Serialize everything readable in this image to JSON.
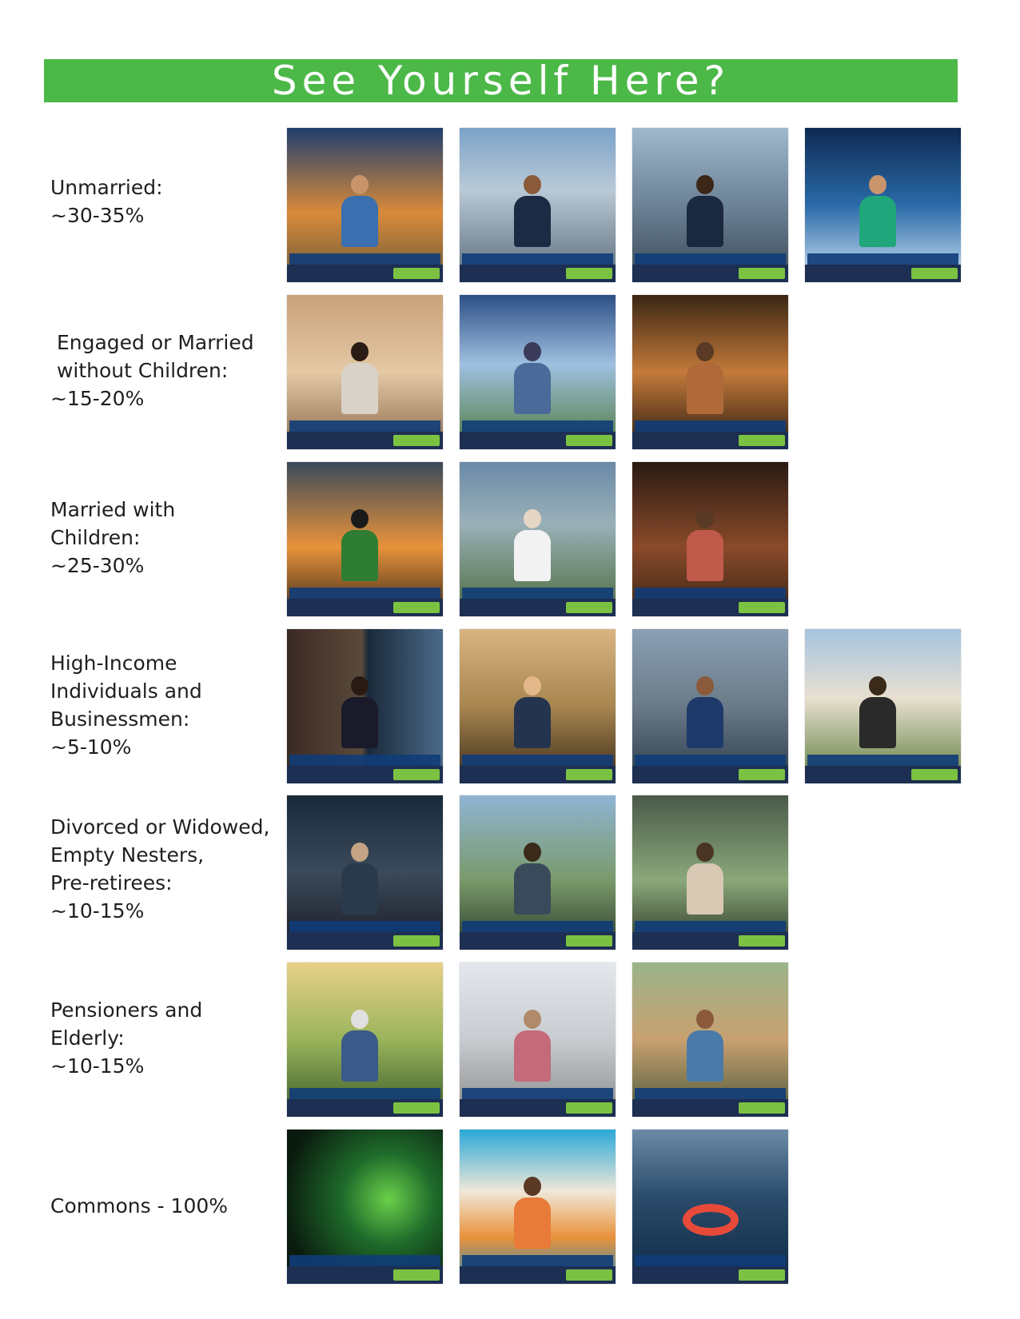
{
  "banner": {
    "title": "See Yourself Here?"
  },
  "rows": [
    {
      "label_lines": [
        "Unmarried:",
        "~30-35%"
      ]
    },
    {
      "label_lines": [
        " Engaged or Married",
        " without Children:",
        "~15-20%"
      ]
    },
    {
      "label_lines": [
        "Married with",
        "Children:",
        "~25-30%"
      ]
    },
    {
      "label_lines": [
        "High-Income",
        "Individuals and",
        "Businessmen:",
        "~5-10%"
      ]
    },
    {
      "label_lines": [
        "Divorced or Widowed,",
        "Empty Nesters,",
        "Pre-retirees:",
        "~10-15%"
      ]
    },
    {
      "label_lines": [
        "Pensioners and",
        "Elderly:",
        "~10-15%"
      ]
    },
    {
      "label_lines": [
        "Commons - 100%"
      ]
    }
  ]
}
